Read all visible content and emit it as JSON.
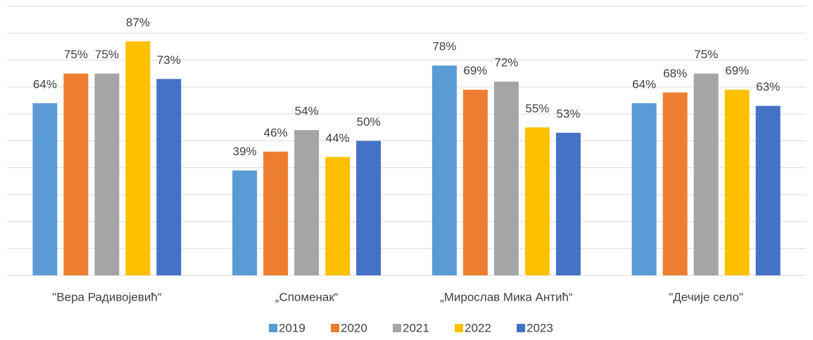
{
  "chart_data": {
    "type": "bar",
    "categories": [
      "\"Вера Радивојевић“",
      "„Споменак“",
      "„Мирослав Мика Антић“",
      "\"Дечије село\""
    ],
    "series": [
      {
        "name": "2019",
        "color": "#5b9bd5",
        "values": [
          64,
          39,
          78,
          64
        ],
        "value_labels": [
          "64%",
          "39%",
          "78%",
          "64%"
        ]
      },
      {
        "name": "2020",
        "color": "#ed7d31",
        "values": [
          75,
          46,
          69,
          68
        ],
        "value_labels": [
          "75%",
          "46%",
          "69%",
          "68%"
        ]
      },
      {
        "name": "2021",
        "color": "#a5a5a5",
        "values": [
          75,
          54,
          72,
          75
        ],
        "value_labels": [
          "75%",
          "54%",
          "72%",
          "75%"
        ]
      },
      {
        "name": "2022",
        "color": "#ffc000",
        "values": [
          87,
          44,
          55,
          69
        ],
        "value_labels": [
          "87%",
          "44%",
          "55%",
          "69%"
        ]
      },
      {
        "name": "2023",
        "color": "#4472c4",
        "values": [
          73,
          50,
          53,
          63
        ],
        "value_labels": [
          "73%",
          "50%",
          "53%",
          "63%"
        ]
      }
    ],
    "ylim": [
      0,
      100
    ],
    "yticks": [
      0,
      10,
      20,
      30,
      40,
      50,
      60,
      70,
      80,
      90,
      100
    ],
    "grid": true,
    "legend": "bottom"
  }
}
